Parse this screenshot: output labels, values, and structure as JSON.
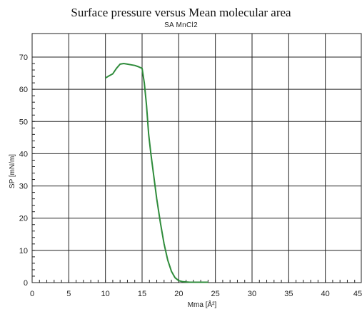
{
  "chart_data": {
    "type": "line",
    "title": "Surface pressure versus Mean molecular area",
    "subtitle": "SA MnCl2",
    "xlabel": "Mma [Å²]",
    "ylabel": "SP [mN/m]",
    "xlim": [
      0,
      45
    ],
    "ylim": [
      0,
      70
    ],
    "x_ticks": [
      "0",
      "5",
      "10",
      "15",
      "20",
      "25",
      "30",
      "35",
      "40",
      "45"
    ],
    "y_ticks": [
      "0",
      "10",
      "20",
      "30",
      "40",
      "50",
      "60",
      "70"
    ],
    "grid": true,
    "line_color": "#2e8b3a",
    "series": [
      {
        "x": [
          10.0,
          10.5,
          11.0,
          11.5,
          12.0,
          12.5,
          13.0,
          13.5,
          14.0,
          14.5,
          15.0,
          15.3,
          15.6,
          15.9,
          16.2,
          16.6,
          17.0,
          17.5,
          18.0,
          18.5,
          19.0,
          19.5,
          20.0,
          20.5,
          21.0,
          21.5,
          22.0,
          23.0,
          24.0
        ],
        "y": [
          63.5,
          64.2,
          64.8,
          66.5,
          67.8,
          68.0,
          67.8,
          67.6,
          67.4,
          67.0,
          66.5,
          62.0,
          55.0,
          46.0,
          40.0,
          33.0,
          26.0,
          18.5,
          12.0,
          7.0,
          3.5,
          1.5,
          0.6,
          0.3,
          0.2,
          0.1,
          0.1,
          0.1,
          0.1
        ]
      }
    ]
  }
}
